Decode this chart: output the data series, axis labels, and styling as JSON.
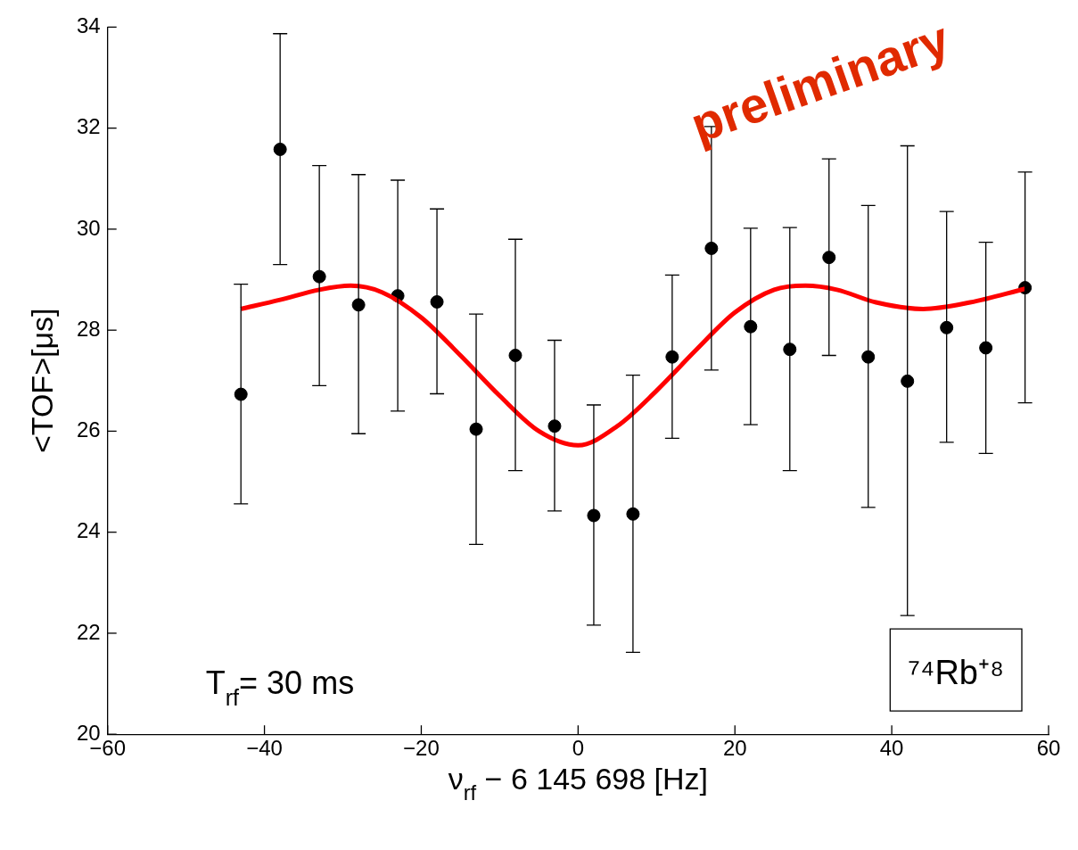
{
  "chart_data": {
    "type": "scatter",
    "xlabel": "ν$_{rf}$ − 6 145 698 [Hz]",
    "ylabel": "<TOF>[μs]",
    "xlim": [
      -60,
      60
    ],
    "xticks": [
      -60,
      -40,
      -20,
      0,
      20,
      40,
      60
    ],
    "ylim": [
      20,
      34
    ],
    "yticks": [
      20,
      22,
      24,
      26,
      28,
      30,
      32,
      34
    ],
    "grid": false,
    "legend": false,
    "marker": "circle",
    "series": [
      {
        "color": "#000000",
        "x": [
          -43,
          -38,
          -33,
          -28,
          -23,
          -18,
          -13,
          -8,
          -3,
          2,
          7,
          12,
          17,
          22,
          27,
          32,
          37,
          42,
          47,
          52,
          57
        ],
        "values": [
          26.73,
          31.58,
          29.06,
          28.5,
          28.68,
          28.56,
          26.04,
          27.5,
          26.1,
          24.33,
          24.36,
          27.47,
          29.62,
          28.07,
          27.62,
          29.44,
          27.47,
          26.99,
          28.05,
          27.65,
          28.84
        ],
        "errors": [
          [
            24.56,
            28.91
          ],
          [
            29.3,
            33.87
          ],
          [
            26.9,
            31.26
          ],
          [
            25.95,
            31.08
          ],
          [
            26.4,
            30.97
          ],
          [
            26.74,
            30.4
          ],
          [
            23.76,
            28.32
          ],
          [
            25.22,
            29.8
          ],
          [
            24.42,
            27.8
          ],
          [
            22.16,
            26.52
          ],
          [
            21.62,
            27.11
          ],
          [
            25.86,
            29.09
          ],
          [
            27.21,
            32.03
          ],
          [
            26.13,
            30.02
          ],
          [
            25.22,
            30.03
          ],
          [
            27.5,
            31.39
          ],
          [
            24.49,
            30.47
          ],
          [
            22.35,
            31.65
          ],
          [
            25.78,
            30.35
          ],
          [
            25.56,
            29.74
          ],
          [
            26.56,
            31.13
          ]
        ]
      },
      {
        "type": "line",
        "color": "#ff0000",
        "marker": "none",
        "line_style": "solid",
        "x": [
          -43,
          -38,
          -33,
          -29,
          -25,
          -20,
          -15,
          -10,
          -5,
          0,
          5,
          10,
          15,
          20,
          25,
          29,
          33,
          38,
          44,
          50,
          57
        ],
        "values": [
          28.42,
          28.6,
          28.8,
          28.88,
          28.75,
          28.25,
          27.5,
          26.7,
          26.0,
          25.72,
          26.1,
          26.8,
          27.6,
          28.35,
          28.8,
          28.88,
          28.8,
          28.55,
          28.42,
          28.55,
          28.82
        ]
      }
    ],
    "annotations": [
      "T$_{rf}$= 30 ms",
      "⁷⁴Rb⁺⁸",
      "preliminary"
    ]
  }
}
